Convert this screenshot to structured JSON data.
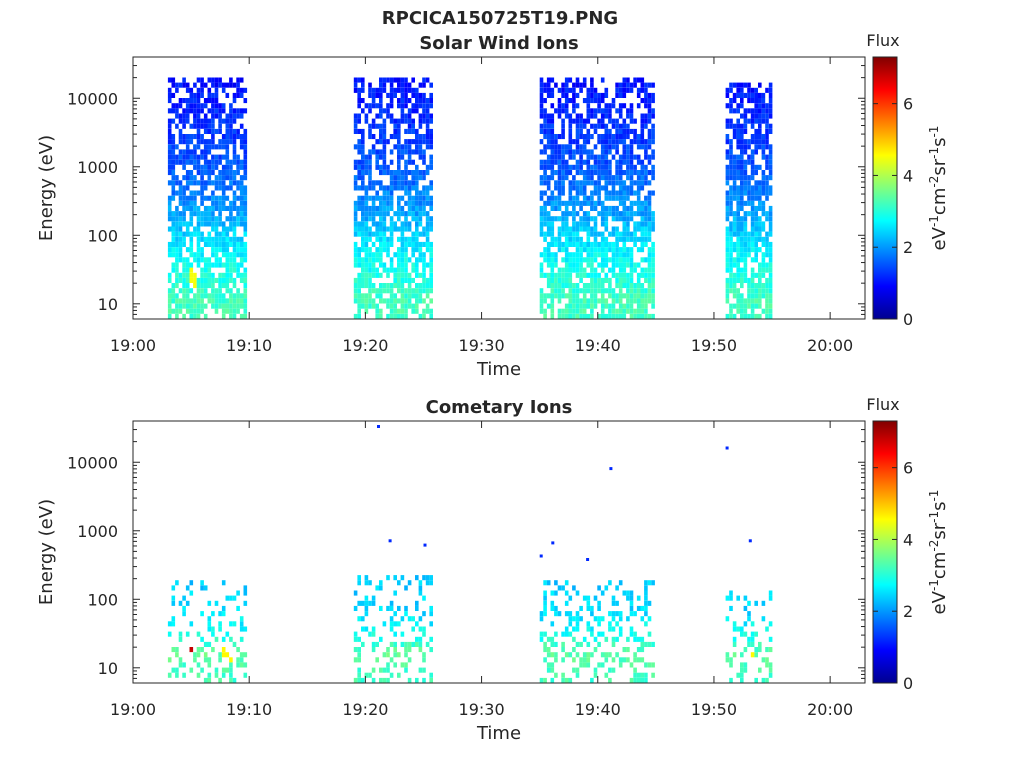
{
  "figure": {
    "title": "RPCICA150725T19.PNG"
  },
  "colors": {
    "axis": "#262626",
    "background": "#ffffff",
    "colormap": "jet"
  },
  "chart_data": [
    {
      "type": "heatmap",
      "title": "Solar Wind Ions",
      "xlabel": "Time",
      "ylabel": "Energy (eV)",
      "xlim": [
        "19:00",
        "20:03"
      ],
      "xticks": [
        "19:00",
        "19:10",
        "19:20",
        "19:30",
        "19:40",
        "19:50",
        "20:00"
      ],
      "y_scale": "log",
      "ylim": [
        6,
        40000
      ],
      "yticks": [
        "10",
        "100",
        "1000",
        "10000"
      ],
      "colorbar": {
        "label": "Flux",
        "units": "eV-1cm-2sr-1s-1",
        "range": [
          0,
          7.3
        ],
        "ticks": [
          "0",
          "2",
          "4",
          "6"
        ]
      },
      "bursts": [
        {
          "start": "19:03",
          "end": "19:09",
          "emax_eV": 20000
        },
        {
          "start": "19:19",
          "end": "19:25",
          "emax_eV": 18000
        },
        {
          "start": "19:35",
          "end": "19:44",
          "emax_eV": 20000
        },
        {
          "start": "19:51",
          "end": "19:54",
          "emax_eV": 16000
        }
      ],
      "flux_profile": [
        {
          "energy_eV": 10,
          "flux": 3.2
        },
        {
          "energy_eV": 20,
          "flux": 3.0
        },
        {
          "energy_eV": 50,
          "flux": 2.7
        },
        {
          "energy_eV": 100,
          "flux": 2.4
        },
        {
          "energy_eV": 300,
          "flux": 1.9
        },
        {
          "energy_eV": 1000,
          "flux": 1.5
        },
        {
          "energy_eV": 5000,
          "flux": 1.2
        },
        {
          "energy_eV": 20000,
          "flux": 1.0
        }
      ],
      "peaks": [
        {
          "time": "19:05",
          "energy_eV": 22,
          "flux": 4.5
        }
      ]
    },
    {
      "type": "heatmap",
      "title": "Cometary Ions",
      "xlabel": "Time",
      "ylabel": "Energy (eV)",
      "xlim": [
        "19:00",
        "20:03"
      ],
      "xticks": [
        "19:00",
        "19:10",
        "19:20",
        "19:30",
        "19:40",
        "19:50",
        "20:00"
      ],
      "y_scale": "log",
      "ylim": [
        6,
        40000
      ],
      "yticks": [
        "10",
        "100",
        "1000",
        "10000"
      ],
      "colorbar": {
        "label": "Flux",
        "units": "eV-1cm-2sr-1s-1",
        "range": [
          0,
          7.3
        ],
        "ticks": [
          "0",
          "2",
          "4",
          "6"
        ]
      },
      "bursts": [
        {
          "start": "19:03",
          "end": "19:09",
          "emax_eV": 180
        },
        {
          "start": "19:19",
          "end": "19:25",
          "emax_eV": 200
        },
        {
          "start": "19:35",
          "end": "19:44",
          "emax_eV": 180
        },
        {
          "start": "19:51",
          "end": "19:54",
          "emax_eV": 120
        }
      ],
      "flux_profile": [
        {
          "energy_eV": 8,
          "flux": 3.2
        },
        {
          "energy_eV": 15,
          "flux": 3.4
        },
        {
          "energy_eV": 30,
          "flux": 2.8
        },
        {
          "energy_eV": 60,
          "flux": 2.5
        },
        {
          "energy_eV": 150,
          "flux": 2.4
        }
      ],
      "peaks": [
        {
          "time": "19:05",
          "energy_eV": 22,
          "flux": 6.8
        },
        {
          "time": "19:08",
          "energy_eV": 15,
          "flux": 4.6
        },
        {
          "time": "19:53",
          "energy_eV": 15,
          "flux": 4.6
        }
      ],
      "isolated_points": [
        {
          "time": "19:21",
          "energy_eV": 35000
        },
        {
          "time": "19:22",
          "energy_eV": 750
        },
        {
          "time": "19:25",
          "energy_eV": 650
        },
        {
          "time": "19:35",
          "energy_eV": 450
        },
        {
          "time": "19:36",
          "energy_eV": 700
        },
        {
          "time": "19:39",
          "energy_eV": 400
        },
        {
          "time": "19:41",
          "energy_eV": 8500
        },
        {
          "time": "19:51",
          "energy_eV": 17000
        },
        {
          "time": "19:53",
          "energy_eV": 750
        }
      ]
    }
  ]
}
